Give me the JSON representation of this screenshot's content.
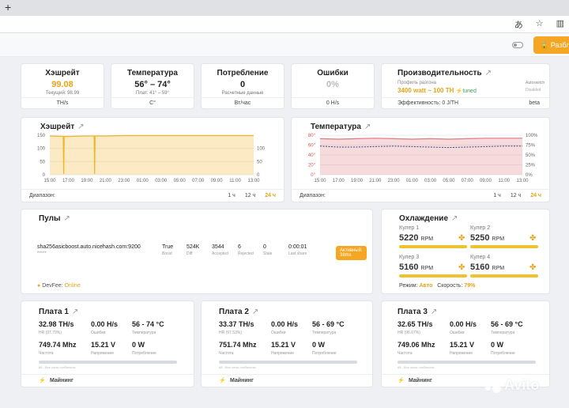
{
  "browser": {
    "new_tab": "+",
    "translate_icon": "translate-icon",
    "star_icon": "star-icon",
    "reader_icon": "reader-icon"
  },
  "header": {
    "unlock_label": "Разбл"
  },
  "stats": [
    {
      "title": "Хэшрейт",
      "value": "99.08",
      "value_color": "#e8a317",
      "sub": "Текущий: 98.99",
      "unit": "TH/s"
    },
    {
      "title": "Температура",
      "value": "56° – 74°",
      "value_color": "#222222",
      "sub": "Плат: 41° – 59°",
      "unit": "C°"
    },
    {
      "title": "Потребление",
      "value": "0",
      "value_color": "#222222",
      "sub": "Расчетные данные",
      "unit": "Вт/час"
    },
    {
      "title": "Ошибки",
      "value": "0%",
      "value_color": "#bbbbbb",
      "sub": "",
      "unit": "0 H/s"
    }
  ],
  "performance": {
    "title": "Производительность",
    "profile_label": "Профиль разгона",
    "profile_value": "3400 watt ~ 100 TH",
    "tuned": "tuned",
    "autoswitch": "Autoswitch",
    "autoswitch_state": "Disabled",
    "efficiency": "Эффективность: 0 J/TH",
    "beta": "beta"
  },
  "hashrate_chart": {
    "title": "Хэшрейт",
    "range_label": "Диапазон:",
    "ranges": [
      "1 ч",
      "12 ч",
      "24 ч"
    ],
    "active_range": "24 ч"
  },
  "temperature_chart": {
    "title": "Температура",
    "range_label": "Диапазон:",
    "ranges": [
      "1 ч",
      "12 ч",
      "24 ч"
    ],
    "active_range": "24 ч"
  },
  "chart_data": [
    {
      "type": "area",
      "title": "Хэшрейт",
      "x": [
        "15:00",
        "17:00",
        "19:00",
        "21:00",
        "23:00",
        "01:00",
        "03:00",
        "05:00",
        "07:00",
        "09:00",
        "11:00",
        "13:00"
      ],
      "ylim": [
        0,
        100
      ],
      "y_ticks": [
        "0",
        "50",
        "100",
        "150"
      ],
      "y_ticks_right": [
        "0",
        "50",
        "100"
      ],
      "series": [
        {
          "values": [
            98,
            97,
            98,
            98,
            99,
            99,
            99,
            99,
            99,
            99,
            99,
            99
          ],
          "color": "#f0b429"
        }
      ],
      "dips": [
        {
          "x": "16:30",
          "y": 2
        },
        {
          "x": "19:50",
          "y": 2
        }
      ],
      "grid": true
    },
    {
      "type": "area",
      "title": "Температура",
      "x": [
        "15:00",
        "17:00",
        "19:00",
        "21:00",
        "23:00",
        "01:00",
        "03:00",
        "05:00",
        "07:00",
        "09:00",
        "11:00",
        "13:00"
      ],
      "ylim": [
        0,
        80
      ],
      "y_ticks": [
        "0°",
        "20°",
        "40°",
        "60°",
        "80°"
      ],
      "y_ticks_right": [
        "0%",
        "25%",
        "50%",
        "75%",
        "100%"
      ],
      "series": [
        {
          "values": [
            73,
            72,
            73,
            74,
            73,
            72,
            73,
            72,
            73,
            74,
            74,
            74
          ],
          "color": "#e07a80"
        },
        {
          "values": [
            58,
            56,
            56,
            57,
            58,
            57,
            56,
            55,
            56,
            57,
            58,
            58
          ],
          "color": "#334c8c"
        }
      ],
      "grid": true
    }
  ],
  "pools": {
    "title": "Пулы",
    "url": "sha256asicboost.auto.nicehash.com:9200",
    "worker": "*****",
    "columns": [
      {
        "value": "True",
        "label": "Boost"
      },
      {
        "value": "524K",
        "label": "Diff"
      },
      {
        "value": "3544",
        "label": "Accepted"
      },
      {
        "value": "6",
        "label": "Rejected"
      },
      {
        "value": "0",
        "label": "Stale"
      },
      {
        "value": "0:00:01",
        "label": "Last share"
      }
    ],
    "status_badge": "Активный: 38ms",
    "devfee_label": "DevFee:",
    "devfee_value": "Online"
  },
  "cooling": {
    "title": "Охлаждение",
    "fans": [
      {
        "label": "Кулер 1",
        "rpm": "5220",
        "unit": "RPM"
      },
      {
        "label": "Кулер 2",
        "rpm": "5250",
        "unit": "RPM"
      },
      {
        "label": "Кулер 3",
        "rpm": "5160",
        "unit": "RPM"
      },
      {
        "label": "Кулер 4",
        "rpm": "5160",
        "unit": "RPM"
      }
    ],
    "mode_label": "Режим:",
    "mode_value": "Авто",
    "speed_label": "Скорость:",
    "speed_value": "79%"
  },
  "boards": [
    {
      "title": "Плата 1",
      "hashrate": "32.98 TH/s",
      "hr_label": "HR (97.79%)",
      "errors": "0.00 H/s",
      "errors_label": "Ошибки",
      "temp": "56 - 74 °C",
      "temp_label": "Температура",
      "freq": "749.74 Mhz",
      "freq_label": "Частота",
      "voltage": "15.21 V",
      "voltage_label": "Напряжение",
      "power": "0 W",
      "power_label": "Потребление",
      "note": "88 - Все чипы стабильны",
      "footer": "Майнинг"
    },
    {
      "title": "Плата 2",
      "hashrate": "33.37 TH/s",
      "hr_label": "HR (97.53%)",
      "errors": "0.00 H/s",
      "errors_label": "Ошибки",
      "temp": "56 - 69 °C",
      "temp_label": "Температура",
      "freq": "751.74 Mhz",
      "freq_label": "Частота",
      "voltage": "15.21 V",
      "voltage_label": "Напряжение",
      "power": "0 W",
      "power_label": "Потребление",
      "note": "88 - Все чипы стабильны",
      "footer": "Майнинг"
    },
    {
      "title": "Плата 3",
      "hashrate": "32.65 TH/s",
      "hr_label": "HR (96.67%)",
      "errors": "0.00 H/s",
      "errors_label": "Ошибки",
      "temp": "56 - 69 °C",
      "temp_label": "Температура",
      "freq": "749.06 Mhz",
      "freq_label": "Частота",
      "voltage": "15.21 V",
      "voltage_label": "Напряжение",
      "power": "0 W",
      "power_label": "Потребление",
      "note": "88 - Все чипы стабильны",
      "footer": "Майнинг"
    }
  ],
  "watermark": {
    "text": "Avito"
  }
}
